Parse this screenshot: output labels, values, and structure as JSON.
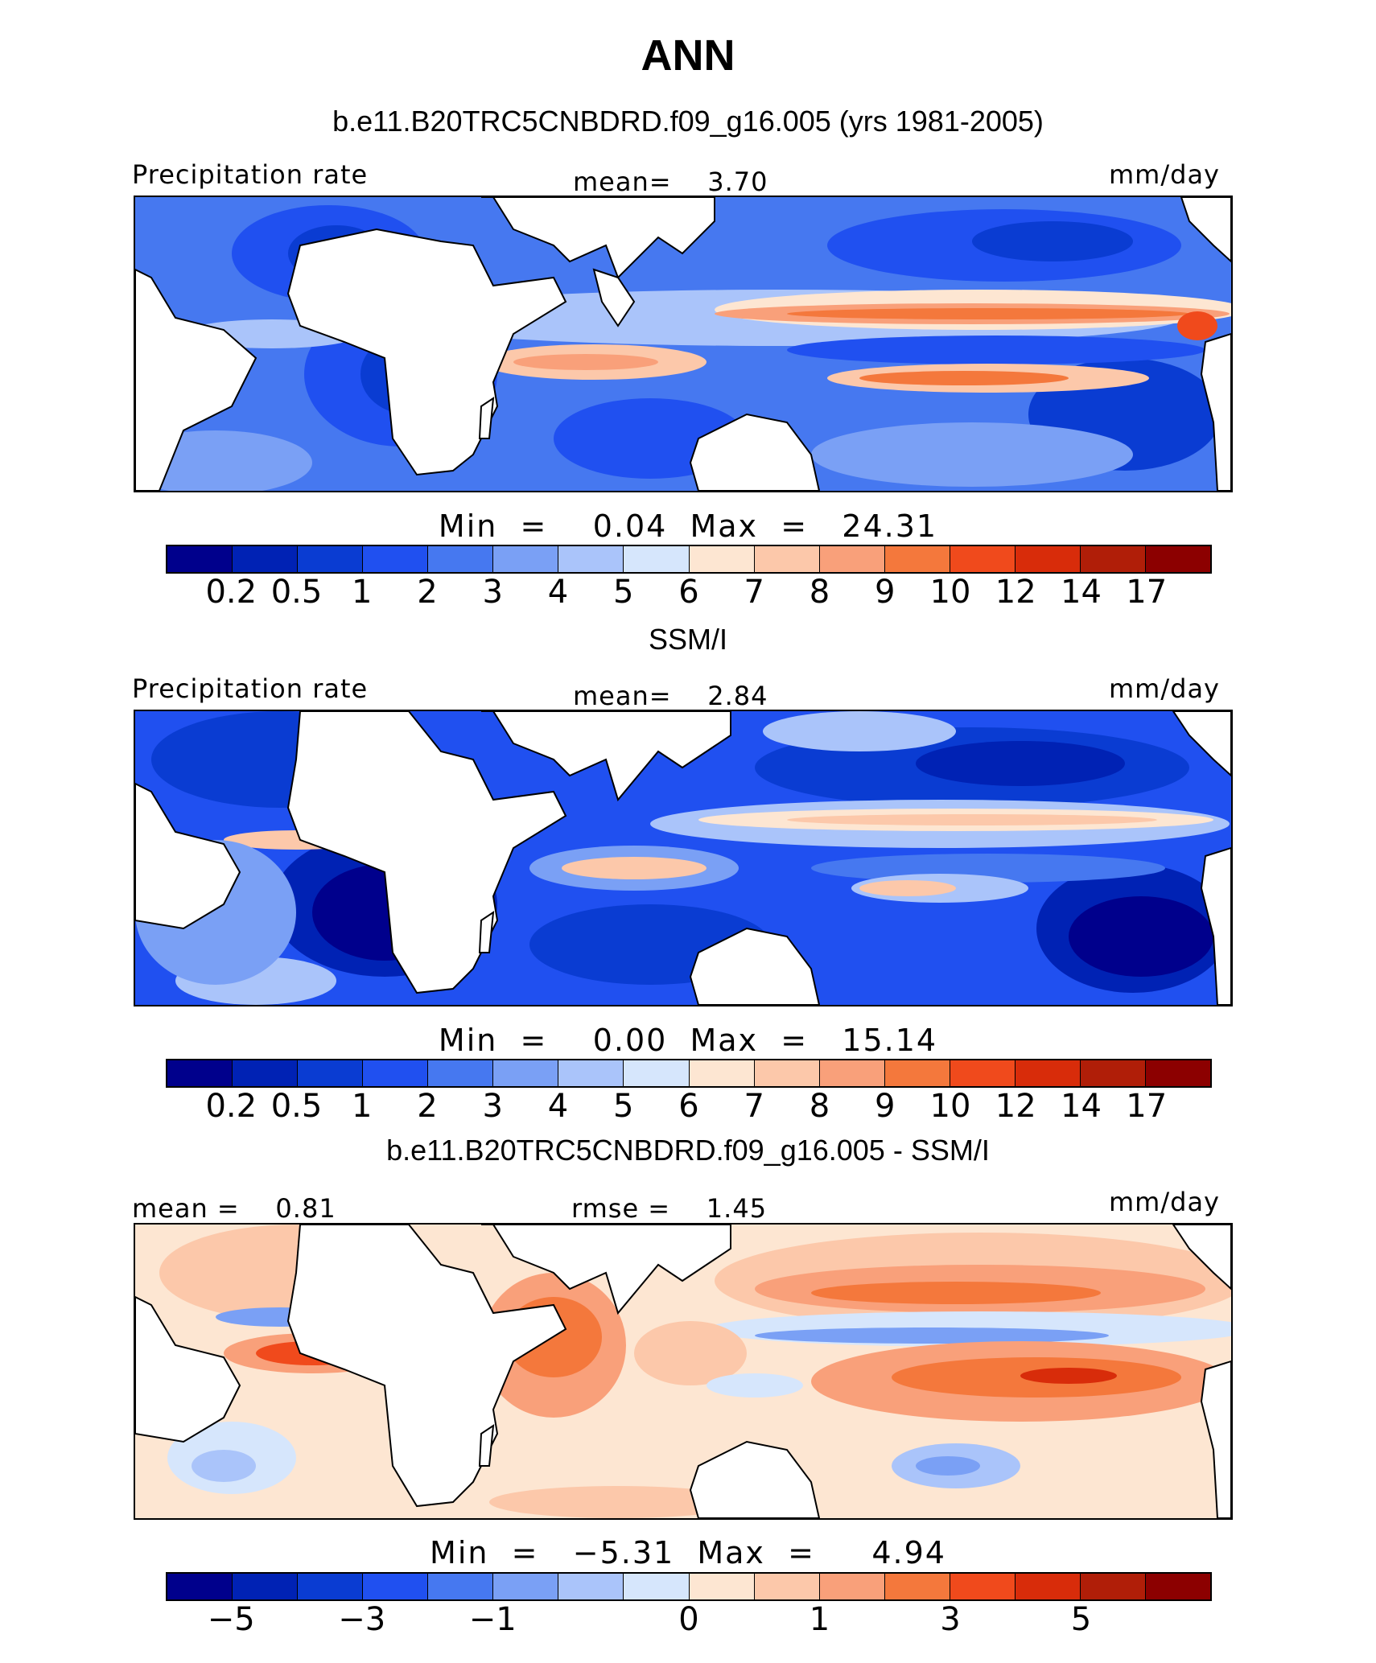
{
  "title": "ANN",
  "panels": [
    {
      "heading": "b.e11.B20TRC5CNBDRD.f09_g16.005 (yrs 1981-2005)",
      "left_label": "Precipitation rate",
      "center_label": "mean=    3.70",
      "right_label": "mm/day",
      "min_label": "Min",
      "min_value": "0.04",
      "max_label": "Max",
      "max_value": "24.31",
      "colorbar_ticks": [
        "0.2",
        "0.5",
        "1",
        "2",
        "3",
        "4",
        "5",
        "6",
        "7",
        "8",
        "9",
        "10",
        "12",
        "14",
        "17"
      ]
    },
    {
      "heading": "SSM/I",
      "left_label": "Precipitation rate",
      "center_label": "mean=    2.84",
      "right_label": "mm/day",
      "min_label": "Min",
      "min_value": "0.00",
      "max_label": "Max",
      "max_value": "15.14",
      "colorbar_ticks": [
        "0.2",
        "0.5",
        "1",
        "2",
        "3",
        "4",
        "5",
        "6",
        "7",
        "8",
        "9",
        "10",
        "12",
        "14",
        "17"
      ]
    },
    {
      "heading": "b.e11.B20TRC5CNBDRD.f09_g16.005 - SSM/I",
      "left_label": "mean =    0.81",
      "center_label": "rmse =    1.45",
      "right_label": "mm/day",
      "min_label": "Min",
      "min_value": "−5.31",
      "max_label": "Max",
      "max_value": "4.94",
      "colorbar_ticks": [
        "−5",
        "−3",
        "−1",
        "0",
        "1",
        "3",
        "5"
      ]
    }
  ],
  "colorbar_colors": [
    "#00008c",
    "#0022b4",
    "#0a3cd2",
    "#2050f0",
    "#4678f0",
    "#7aa0f5",
    "#aac4fa",
    "#d6e6fc",
    "#fde6d2",
    "#fcc8aa",
    "#f9a07a",
    "#f4783c",
    "#f04a1c",
    "#d82c0a",
    "#b01e08",
    "#8c0000"
  ],
  "icons": {
    "coastline": "coastline-outline",
    "land": "land-mask"
  }
}
